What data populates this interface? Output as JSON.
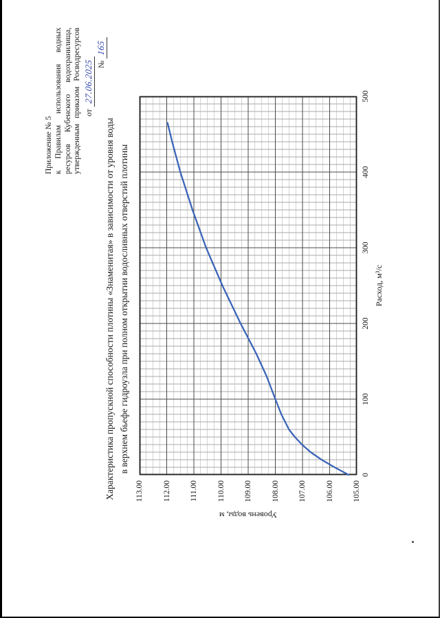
{
  "doc": {
    "header": {
      "lines": [
        "Приложение № 5",
        "к Правилам использования водных",
        "ресурсов Кубенского водохранилища,",
        "утвержденным приказом Росводресурсов"
      ],
      "from_label": "от",
      "date_handwritten": "27.06.2025",
      "number_label": "№",
      "number_handwritten": "165"
    },
    "title_line1": "Характеристика пропускной способности плотины «Знаменитая» в зависимости от уровня воды",
    "title_line2": "в верхнем бьефе гидроузла при полном открытии водосливных отверстий плотины"
  },
  "chart_data": {
    "type": "line",
    "title": "",
    "xlabel": "Расход, м³/с",
    "ylabel": "Уровень воды, м",
    "xlim": [
      0,
      500
    ],
    "ylim": [
      105,
      113
    ],
    "x_ticks": [
      0,
      100,
      200,
      300,
      400,
      500
    ],
    "x_tick_labels": [
      "0",
      "100",
      "200",
      "300",
      "400",
      "500"
    ],
    "y_ticks": [
      105,
      106,
      107,
      108,
      109,
      110,
      111,
      112,
      113
    ],
    "y_tick_labels": [
      "105.00",
      "106.00",
      "107.00",
      "108.00",
      "109.00",
      "110.00",
      "111.00",
      "112.00",
      "113.00"
    ],
    "x_minor_step": 10,
    "y_minor_step": 0.25,
    "grid": "minor+major",
    "legend": false,
    "line_color": "#3a64b8",
    "series": [
      {
        "x": [
          0,
          10,
          20,
          30,
          40,
          50,
          60,
          80,
          100,
          130,
          160,
          200,
          250,
          300,
          350,
          400,
          440,
          465
        ],
        "y": [
          105.3,
          105.82,
          106.3,
          106.7,
          107.02,
          107.28,
          107.5,
          107.78,
          108.0,
          108.32,
          108.7,
          109.28,
          109.95,
          110.55,
          111.05,
          111.5,
          111.8,
          111.97
        ]
      }
    ]
  }
}
